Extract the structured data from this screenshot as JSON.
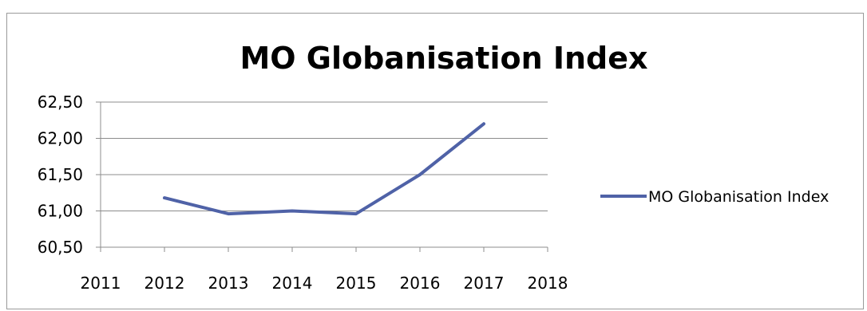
{
  "chart_data": {
    "type": "line",
    "title": "MO Globanisation Index",
    "xlabel": "",
    "ylabel": "",
    "x_ticks": [
      "2011",
      "2012",
      "2013",
      "2014",
      "2015",
      "2016",
      "2017",
      "2018"
    ],
    "y_ticks": [
      "60,50",
      "61,00",
      "61,50",
      "62,00",
      "62,50"
    ],
    "ylim": [
      60.5,
      62.5
    ],
    "xlim": [
      2011,
      2018
    ],
    "grid": "horizontal",
    "legend_position": "right",
    "series": [
      {
        "name": "MO Globanisation Index",
        "color": "#4F62A7",
        "x": [
          2012,
          2013,
          2014,
          2015,
          2016,
          2017
        ],
        "values": [
          61.18,
          60.96,
          61.0,
          60.96,
          61.5,
          62.2
        ]
      }
    ]
  }
}
